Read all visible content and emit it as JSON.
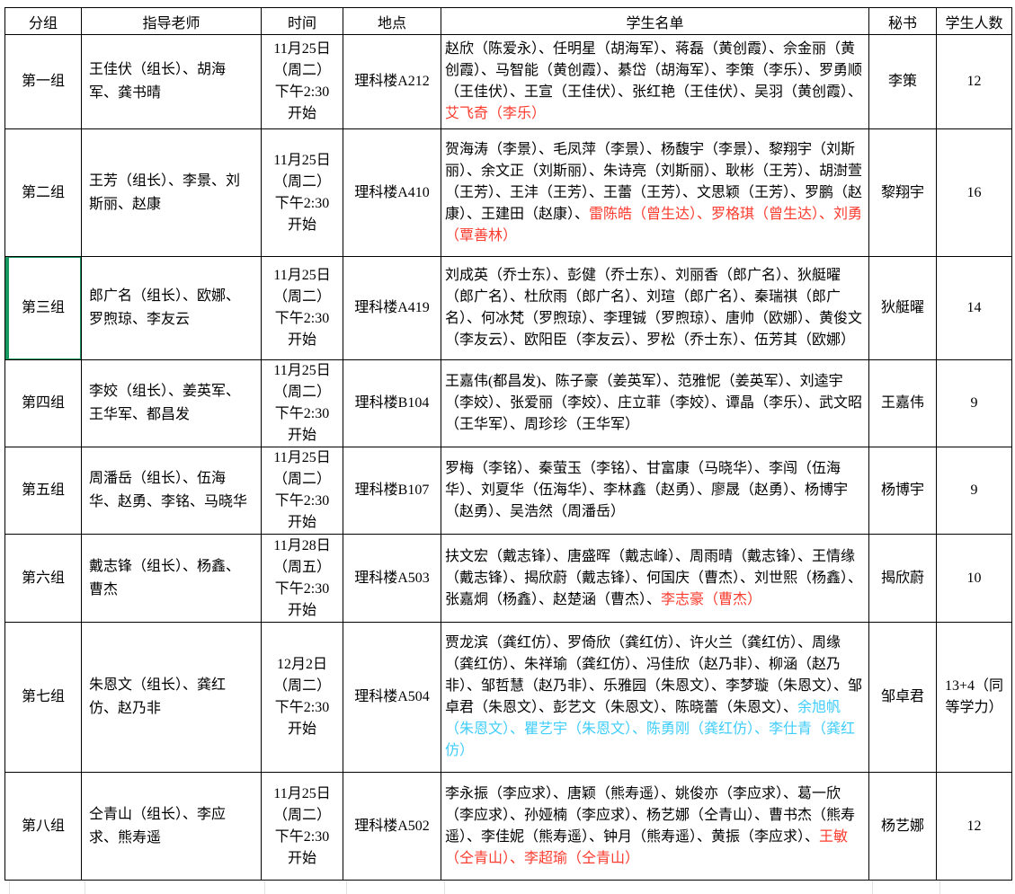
{
  "colors": {
    "red": "#fa3b2e",
    "cyan": "#3fcdf9",
    "selection_green": "#17985f"
  },
  "table": {
    "headers": [
      "分组",
      "指导老师",
      "时间",
      "地点",
      "学生名单",
      "秘书",
      "学生人数"
    ],
    "rows": [
      {
        "group": "第一组",
        "advisors": "王佳伏（组长）、胡海军、龚书晴",
        "time_lines": [
          "11月25日",
          "（周二）",
          "下午2:30",
          "开始"
        ],
        "location": "理科楼A212",
        "students": [
          {
            "text": "赵欣（陈爱永）、任明星（胡海军）、蒋磊（黄创霞）、佘金丽（黄创霞）、马智能（黄创霞）、綦岱（胡海军）、李策（李乐）、罗勇顺（王佳伏）、王宣（王佳伏）、张红艳（王佳伏）、吴羽（黄创霞）、",
            "color": "default"
          },
          {
            "text": "艾飞奇（李乐）",
            "color": "red"
          }
        ],
        "secretary": "李策",
        "count": "12",
        "selected": false
      },
      {
        "group": "第二组",
        "advisors": "王芳（组长）、李景、刘斯丽、赵康",
        "time_lines": [
          "11月25日",
          "（周二）",
          "下午2:30",
          "开始"
        ],
        "location": "理科楼A410",
        "students": [
          {
            "text": "贺海涛（李景）、毛凤萍（李景）、杨馥宇（李景）、黎翔宇（刘斯丽）、余文正（刘斯丽）、朱诗亮（刘斯丽）、耿彬（王芳）、胡澍萱（王芳）、王沣（王芳）、王蕾（王芳）、文思颖（王芳）、罗鹏（赵康）、王建田（赵康）、",
            "color": "default"
          },
          {
            "text": "雷陈皓（曾生达）、罗格琪（曾生达）、刘勇（覃善林）",
            "color": "red"
          }
        ],
        "secretary": "黎翔宇",
        "count": "16",
        "selected": false
      },
      {
        "group": "第三组",
        "advisors": "郎广名（组长）、欧娜、罗煦琼、李友云",
        "time_lines": [
          "11月25日",
          "（周二）",
          "下午2:30",
          "开始"
        ],
        "location": "理科楼A419",
        "students": [
          {
            "text": "刘成英（乔士东）、彭健（乔士东）、刘丽香（郎广名）、狄艇曜（郎广名）、杜欣雨（郎广名）、刘瑄（郎广名）、秦瑞祺（郎广名）、何冰梵（罗煦琼）、李理铖（罗煦琼）、唐帅（欧娜）、黄俊文（李友云）、欧阳臣（李友云）、罗松（乔士东）、伍芳其（欧娜）",
            "color": "default"
          }
        ],
        "secretary": "狄艇曜",
        "count": "14",
        "selected": true
      },
      {
        "group": "第四组",
        "advisors": "李姣（组长）、姜英军、王华军、都昌发",
        "time_lines": [
          "11月25日",
          "（周二）",
          "下午2:30",
          "开始"
        ],
        "location": "理科楼B104",
        "students": [
          {
            "text": "王嘉伟(都昌发)、陈子豪（姜英军）、范雅怩（姜英军）、刘逵宇（李姣）、张爱丽（李姣）、庄立菲（李姣）、谭晶（李乐）、武文昭（王华军）、周珍珍（王华军）",
            "color": "default"
          }
        ],
        "secretary": "王嘉伟",
        "count": "9",
        "selected": false
      },
      {
        "group": "第五组",
        "advisors": "周潘岳（组长）、伍海华、赵勇、李铭、马晓华",
        "time_lines": [
          "11月25日",
          "（周二）",
          "下午2:30",
          "开始"
        ],
        "location": "理科楼B107",
        "students": [
          {
            "text": "罗梅（李铭）、秦萤玉（李铭）、甘富康（马晓华）、李闯（伍海华）、刘夏华（伍海华）、李林鑫（赵勇）、廖晟（赵勇）、杨博宇（赵勇）、吴浩然（周潘岳）",
            "color": "default"
          }
        ],
        "secretary": "杨博宇",
        "count": "9",
        "selected": false
      },
      {
        "group": "第六组",
        "advisors": "戴志锋（组长）、杨鑫、曹杰",
        "time_lines": [
          "11月28日",
          "（周五）",
          "下午2:30",
          "开始"
        ],
        "location": "理科楼A503",
        "students": [
          {
            "text": "扶文宏（戴志锋）、唐盛晖（戴志峰）、周雨晴（戴志锋）、王情缘（戴志锋）、揭欣蔚（戴志锋）、何国庆（曹杰）、刘世熙（杨鑫）、张嘉烔（杨鑫）、赵楚涵（曹杰）、",
            "color": "default"
          },
          {
            "text": "李志豪（曹杰）",
            "color": "red"
          }
        ],
        "secretary": "揭欣蔚",
        "count": "10",
        "selected": false
      },
      {
        "group": "第七组",
        "advisors": "朱恩文（组长）、龚红仿、赵乃非",
        "time_lines": [
          "12月2日",
          "（周二）",
          "下午2:30",
          "开始"
        ],
        "location": "理科楼A504",
        "students": [
          {
            "text": "贾龙滨（龚红仿）、罗倚欣（龚红仿）、许火兰（龚红仿）、周缘（龚红仿）、朱祥瑜（龚红仿）、冯佳欣（赵乃非）、柳涵（赵乃非）、邹哲慧（赵乃非）、乐雅园（朱恩文）、李梦璇（朱恩文）、邹卓君（朱恩文）、彭艺文（朱恩文）、陈晓蕾（朱恩文）、",
            "color": "default"
          },
          {
            "text": "余旭帆（朱恩文）、瞿艺宇（朱恩文）、陈勇刚（龚红仿）、李仕青（龚红仿）",
            "color": "cyan"
          }
        ],
        "secretary": "邹卓君",
        "count": "13+4（同等学力）",
        "selected": false
      },
      {
        "group": "第八组",
        "advisors": "仝青山（组长）、李应求、熊寿遥",
        "time_lines": [
          "11月25日",
          "（周二）",
          "下午2:30",
          "开始"
        ],
        "location": "理科楼A502",
        "students": [
          {
            "text": "李永振（李应求）、唐颖（熊寿遥）、姚俊亦（李应求）、葛一欣（李应求）、孙娅楠（李应求）、杨艺娜（仝青山）、曹书杰（熊寿遥）、李佳妮（熊寿遥）、钟月（熊寿遥）、黄振（李应求）、",
            "color": "default"
          },
          {
            "text": "王敏（仝青山）、李超瑜（仝青山）",
            "color": "red"
          }
        ],
        "secretary": "杨艺娜",
        "count": "12",
        "selected": false
      }
    ]
  }
}
